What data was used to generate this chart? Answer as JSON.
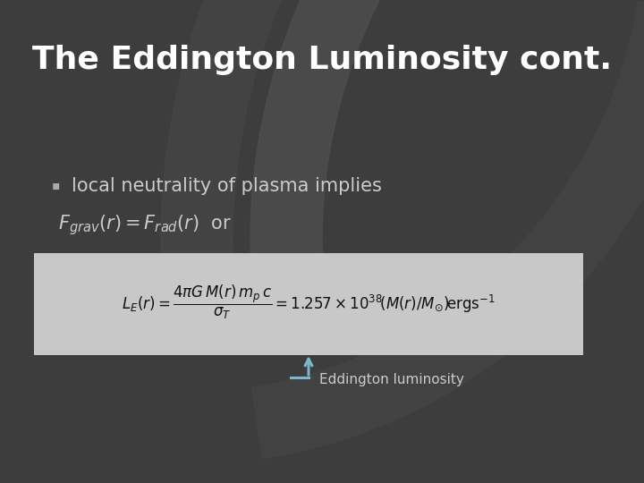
{
  "title": "The Eddington Luminosity cont.",
  "title_fontsize": 26,
  "title_color": "#ffffff",
  "bg_color": "#3d3d3d",
  "bg_arc_color": "#555555",
  "bullet_text1": "local neutrality of plasma implies",
  "bullet_fontsize": 15,
  "bullet_color": "#cccccc",
  "eq_box_color": "#c8c8c8",
  "eq_fontsize": 12,
  "arrow_color": "#7ab8cc",
  "arrow_label": "Eddington luminosity",
  "arrow_label_color": "#cccccc",
  "arrow_label_fontsize": 11
}
